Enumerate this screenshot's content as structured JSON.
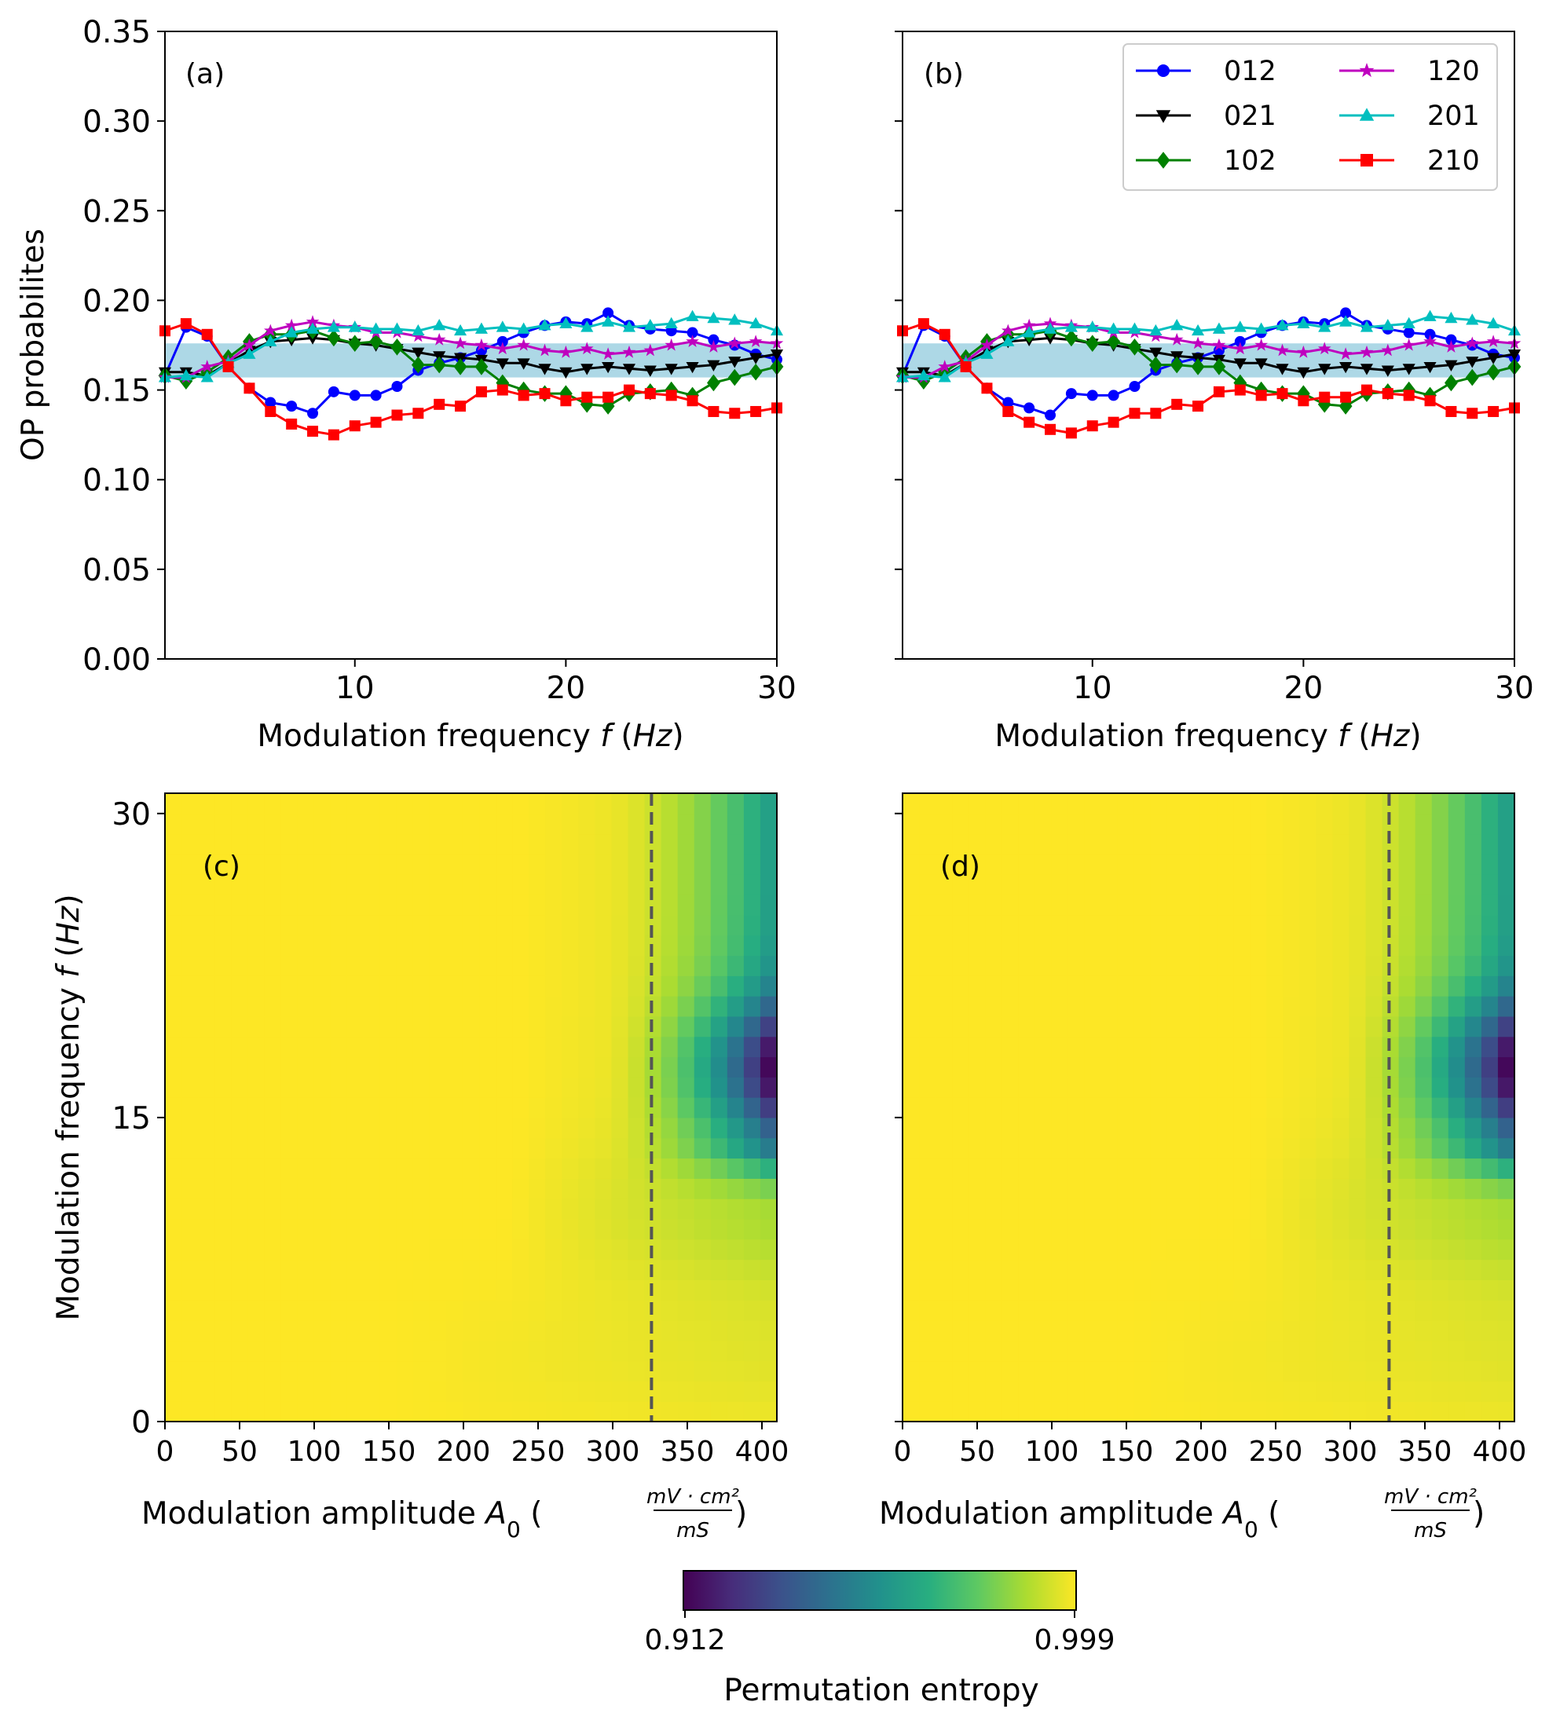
{
  "figure": {
    "colorbar": {
      "label": "Permutation entropy",
      "min_label": "0.912",
      "max_label": "0.999",
      "min": 0.912,
      "max": 0.999
    }
  },
  "chart_data": [
    {
      "panel": "(a)",
      "type": "line",
      "xlabel_text": "Modulation frequency ",
      "xlabel_var": "f",
      "xlabel_unit": "Hz",
      "ylabel": "OP probabilites",
      "xlim": [
        1,
        30
      ],
      "ylim": [
        0,
        0.35
      ],
      "xticks": [
        10,
        20,
        30
      ],
      "yticks": [
        "0.00",
        "0.05",
        "0.10",
        "0.15",
        "0.20",
        "0.25",
        "0.30",
        "0.35"
      ],
      "band": {
        "lower": 0.157,
        "upper": 0.176,
        "color": "#add8e6"
      },
      "x": [
        1,
        2,
        3,
        4,
        5,
        6,
        7,
        8,
        9,
        10,
        11,
        12,
        13,
        14,
        15,
        16,
        17,
        18,
        19,
        20,
        21,
        22,
        23,
        24,
        25,
        26,
        27,
        28,
        29,
        30
      ],
      "series": [
        {
          "name": "012",
          "color": "#0000ff",
          "marker": "circle",
          "values": [
            0.158,
            0.185,
            0.18,
            0.163,
            0.151,
            0.143,
            0.141,
            0.137,
            0.149,
            0.147,
            0.147,
            0.152,
            0.161,
            0.165,
            0.168,
            0.172,
            0.177,
            0.182,
            0.186,
            0.188,
            0.187,
            0.193,
            0.186,
            0.184,
            0.183,
            0.182,
            0.178,
            0.175,
            0.17,
            0.167
          ]
        },
        {
          "name": "021",
          "color": "#000000",
          "marker": "triangle-down",
          "values": [
            0.16,
            0.16,
            0.158,
            0.165,
            0.172,
            0.177,
            0.178,
            0.179,
            0.178,
            0.176,
            0.175,
            0.173,
            0.171,
            0.169,
            0.168,
            0.167,
            0.165,
            0.165,
            0.162,
            0.16,
            0.162,
            0.163,
            0.162,
            0.161,
            0.162,
            0.163,
            0.164,
            0.166,
            0.168,
            0.17
          ]
        },
        {
          "name": "102",
          "color": "#008000",
          "marker": "diamond",
          "values": [
            0.158,
            0.155,
            0.16,
            0.168,
            0.177,
            0.181,
            0.181,
            0.183,
            0.179,
            0.176,
            0.177,
            0.174,
            0.164,
            0.164,
            0.163,
            0.163,
            0.154,
            0.15,
            0.148,
            0.148,
            0.142,
            0.141,
            0.148,
            0.149,
            0.15,
            0.147,
            0.154,
            0.157,
            0.16,
            0.163
          ]
        },
        {
          "name": "120",
          "color": "#bf00bf",
          "marker": "star",
          "values": [
            0.157,
            0.157,
            0.163,
            0.166,
            0.175,
            0.183,
            0.186,
            0.188,
            0.186,
            0.185,
            0.182,
            0.182,
            0.18,
            0.178,
            0.176,
            0.175,
            0.173,
            0.175,
            0.172,
            0.171,
            0.173,
            0.17,
            0.171,
            0.172,
            0.175,
            0.177,
            0.174,
            0.176,
            0.177,
            0.176
          ]
        },
        {
          "name": "201",
          "color": "#00bfbf",
          "marker": "triangle-up",
          "values": [
            0.157,
            0.158,
            0.157,
            0.165,
            0.17,
            0.177,
            0.182,
            0.184,
            0.185,
            0.185,
            0.184,
            0.184,
            0.183,
            0.186,
            0.183,
            0.184,
            0.185,
            0.184,
            0.186,
            0.187,
            0.185,
            0.188,
            0.185,
            0.186,
            0.187,
            0.191,
            0.19,
            0.189,
            0.187,
            0.183
          ]
        },
        {
          "name": "210",
          "color": "#ff0000",
          "marker": "square",
          "values": [
            0.183,
            0.187,
            0.181,
            0.163,
            0.151,
            0.138,
            0.131,
            0.127,
            0.125,
            0.13,
            0.132,
            0.136,
            0.137,
            0.142,
            0.141,
            0.149,
            0.15,
            0.147,
            0.148,
            0.144,
            0.146,
            0.146,
            0.15,
            0.148,
            0.147,
            0.144,
            0.138,
            0.137,
            0.138,
            0.14
          ]
        }
      ]
    },
    {
      "panel": "(b)",
      "type": "line",
      "xlabel_text": "Modulation frequency ",
      "xlabel_var": "f",
      "xlabel_unit": "Hz",
      "xlim": [
        1,
        30
      ],
      "ylim": [
        0,
        0.35
      ],
      "xticks": [
        10,
        20,
        30
      ],
      "band": {
        "lower": 0.157,
        "upper": 0.176,
        "color": "#add8e6"
      },
      "legend": {
        "position": "top-right",
        "columns": 2
      },
      "x": [
        1,
        2,
        3,
        4,
        5,
        6,
        7,
        8,
        9,
        10,
        11,
        12,
        13,
        14,
        15,
        16,
        17,
        18,
        19,
        20,
        21,
        22,
        23,
        24,
        25,
        26,
        27,
        28,
        29,
        30
      ],
      "series": [
        {
          "name": "012",
          "color": "#0000ff",
          "marker": "circle",
          "values": [
            0.158,
            0.186,
            0.18,
            0.163,
            0.151,
            0.143,
            0.14,
            0.136,
            0.148,
            0.147,
            0.147,
            0.152,
            0.161,
            0.165,
            0.168,
            0.172,
            0.177,
            0.182,
            0.186,
            0.188,
            0.187,
            0.193,
            0.186,
            0.184,
            0.182,
            0.181,
            0.178,
            0.175,
            0.17,
            0.168
          ]
        },
        {
          "name": "021",
          "color": "#000000",
          "marker": "triangle-down",
          "values": [
            0.16,
            0.16,
            0.158,
            0.165,
            0.172,
            0.177,
            0.178,
            0.179,
            0.178,
            0.176,
            0.175,
            0.173,
            0.171,
            0.169,
            0.168,
            0.167,
            0.165,
            0.165,
            0.162,
            0.16,
            0.162,
            0.163,
            0.162,
            0.161,
            0.162,
            0.163,
            0.164,
            0.166,
            0.168,
            0.17
          ]
        },
        {
          "name": "102",
          "color": "#008000",
          "marker": "diamond",
          "values": [
            0.158,
            0.155,
            0.16,
            0.168,
            0.177,
            0.181,
            0.181,
            0.183,
            0.179,
            0.176,
            0.177,
            0.174,
            0.164,
            0.164,
            0.163,
            0.163,
            0.154,
            0.15,
            0.148,
            0.148,
            0.142,
            0.141,
            0.148,
            0.149,
            0.15,
            0.147,
            0.154,
            0.157,
            0.16,
            0.163
          ]
        },
        {
          "name": "120",
          "color": "#bf00bf",
          "marker": "star",
          "values": [
            0.157,
            0.157,
            0.163,
            0.166,
            0.175,
            0.183,
            0.186,
            0.187,
            0.186,
            0.185,
            0.182,
            0.182,
            0.18,
            0.178,
            0.176,
            0.175,
            0.173,
            0.175,
            0.172,
            0.171,
            0.173,
            0.17,
            0.171,
            0.172,
            0.175,
            0.177,
            0.174,
            0.176,
            0.177,
            0.176
          ]
        },
        {
          "name": "201",
          "color": "#00bfbf",
          "marker": "triangle-up",
          "values": [
            0.157,
            0.158,
            0.157,
            0.165,
            0.17,
            0.177,
            0.182,
            0.184,
            0.185,
            0.185,
            0.184,
            0.184,
            0.183,
            0.186,
            0.183,
            0.184,
            0.185,
            0.184,
            0.186,
            0.187,
            0.185,
            0.188,
            0.185,
            0.186,
            0.187,
            0.191,
            0.19,
            0.189,
            0.187,
            0.183
          ]
        },
        {
          "name": "210",
          "color": "#ff0000",
          "marker": "square",
          "values": [
            0.183,
            0.187,
            0.181,
            0.163,
            0.151,
            0.138,
            0.132,
            0.128,
            0.126,
            0.13,
            0.132,
            0.137,
            0.137,
            0.142,
            0.141,
            0.149,
            0.15,
            0.147,
            0.148,
            0.144,
            0.146,
            0.146,
            0.15,
            0.148,
            0.147,
            0.144,
            0.138,
            0.137,
            0.138,
            0.14
          ]
        }
      ]
    },
    {
      "panel": "(c)",
      "type": "heatmap",
      "xlabel_text": "Modulation amplitude ",
      "xlabel_var": "A",
      "xlabel_sub": "0",
      "unit_num": "mV · cm²",
      "unit_den": "mS",
      "ylabel_text": "Modulation frequency ",
      "ylabel_var": "f",
      "ylabel_unit": "Hz",
      "xlim": [
        0,
        410
      ],
      "ylim": [
        0,
        31
      ],
      "xticks": [
        0,
        50,
        100,
        150,
        200,
        250,
        300,
        350,
        400
      ],
      "yticks": [
        0,
        15,
        30
      ],
      "threshold_amplitude": 326,
      "value_range": [
        0.912,
        0.999
      ],
      "minimum": {
        "amplitude": 405,
        "frequency": 17.5,
        "value": 0.912
      }
    },
    {
      "panel": "(d)",
      "type": "heatmap",
      "xlabel_text": "Modulation amplitude ",
      "xlabel_var": "A",
      "xlabel_sub": "0",
      "unit_num": "mV · cm²",
      "unit_den": "mS",
      "xlim": [
        0,
        410
      ],
      "ylim": [
        0,
        31
      ],
      "xticks": [
        0,
        50,
        100,
        150,
        200,
        250,
        300,
        350,
        400
      ],
      "yticks": [
        0,
        15,
        30
      ],
      "threshold_amplitude": 326,
      "value_range": [
        0.912,
        0.999
      ],
      "minimum": {
        "amplitude": 405,
        "frequency": 17.5,
        "value": 0.912
      }
    }
  ]
}
